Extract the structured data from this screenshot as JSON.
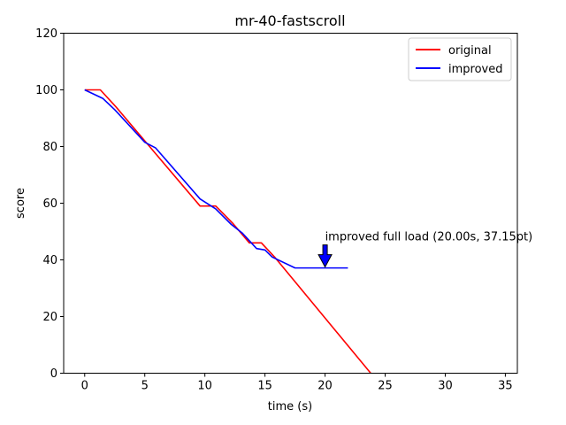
{
  "chart_data": {
    "type": "line",
    "title": "mr-40-fastscroll",
    "xlabel": "time (s)",
    "ylabel": "score",
    "xlim": [
      -1.75,
      36.0
    ],
    "ylim": [
      0,
      120
    ],
    "xticks": [
      0,
      5,
      10,
      15,
      20,
      25,
      30,
      35
    ],
    "yticks": [
      0,
      20,
      40,
      60,
      80,
      100,
      120
    ],
    "grid": false,
    "legend": "top-right",
    "series": [
      {
        "name": "original",
        "color": "#ff0000",
        "x": [
          0,
          1.3,
          2.6,
          5.0,
          9.6,
          10.9,
          12.3,
          13.7,
          14.7,
          15.8,
          23.8
        ],
        "y": [
          100,
          100,
          94,
          82,
          59,
          59,
          53,
          46,
          46,
          41,
          0
        ]
      },
      {
        "name": "improved",
        "color": "#0000ff",
        "x": [
          0,
          1.5,
          2.5,
          5.0,
          5.9,
          9.6,
          10.9,
          12.2,
          13.1,
          14.3,
          15.0,
          15.6,
          17.5,
          21.9
        ],
        "y": [
          100,
          97,
          93,
          81.5,
          79.5,
          61.5,
          58,
          52.5,
          49.5,
          44,
          43.5,
          41,
          37.15,
          37.15
        ]
      }
    ],
    "annotation": {
      "text": "improved full load (20.00s, 37.15pt)",
      "x": 20.0,
      "y": 37.15,
      "arrow_color": "#0000ff"
    }
  }
}
